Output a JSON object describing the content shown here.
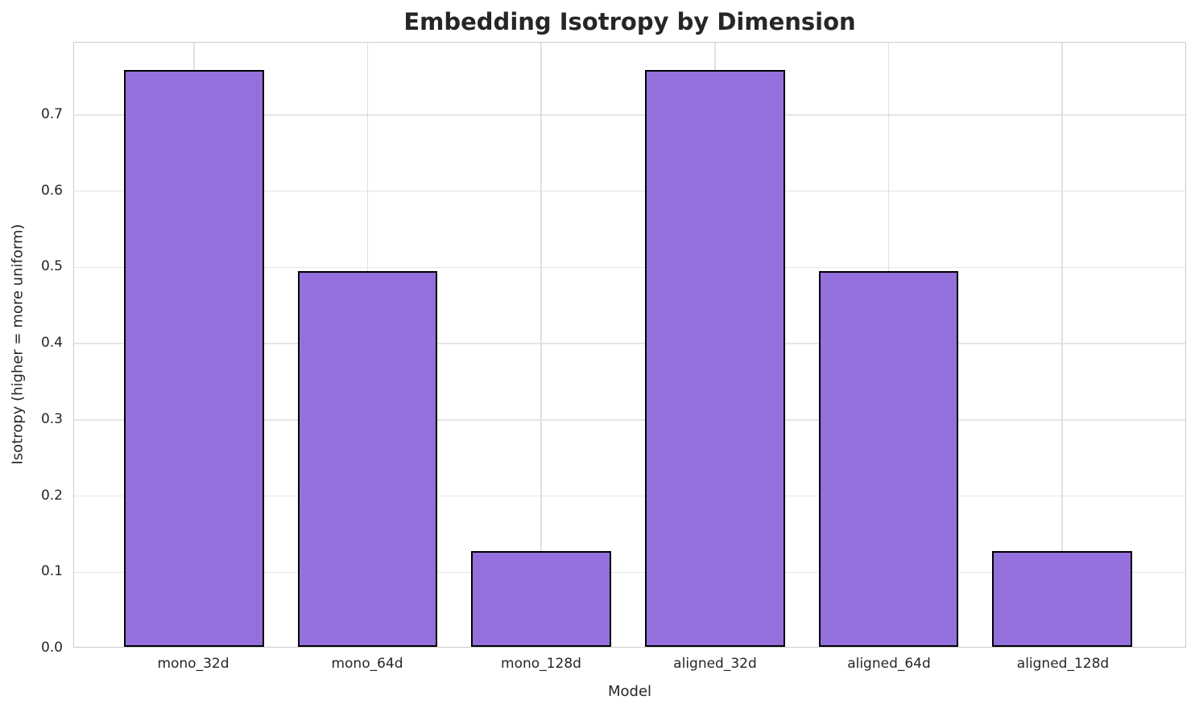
{
  "chart_data": {
    "type": "bar",
    "title": "Embedding Isotropy by Dimension",
    "xlabel": "Model",
    "ylabel": "Isotropy (higher = more uniform)",
    "categories": [
      "mono_32d",
      "mono_64d",
      "mono_128d",
      "aligned_32d",
      "aligned_64d",
      "aligned_128d"
    ],
    "values": [
      0.757,
      0.493,
      0.126,
      0.757,
      0.493,
      0.126
    ],
    "yticks": [
      "0.0",
      "0.1",
      "0.2",
      "0.3",
      "0.4",
      "0.5",
      "0.6",
      "0.7"
    ],
    "ytick_values": [
      0.0,
      0.1,
      0.2,
      0.3,
      0.4,
      0.5,
      0.6,
      0.7
    ],
    "ylim": [
      0,
      0.795
    ],
    "grid": true,
    "legend_position": "none",
    "bar_color": "#9370DB",
    "bar_edge_color": "#000000",
    "grid_color": "#e0e0e0",
    "text_color": "#262626"
  }
}
